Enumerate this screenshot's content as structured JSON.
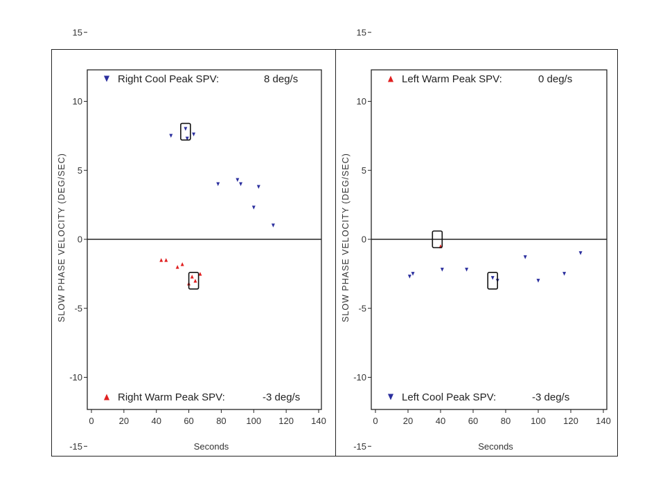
{
  "chart_data": [
    {
      "type": "scatter",
      "panel": "right-ear",
      "xlabel": "Seconds",
      "ylabel": "SLOW PHASE VELOCITY (DEG/SEC)",
      "xlim": [
        0,
        140
      ],
      "ylim": [
        -23,
        25
      ],
      "xticks": [
        "0",
        "20",
        "40",
        "60",
        "80",
        "100",
        "120",
        "140"
      ],
      "yticks": [
        "20",
        "15",
        "10",
        "5",
        "0",
        "-5",
        "-10",
        "-15",
        "-20"
      ],
      "colors": {
        "cool": "#2b2f9e",
        "warm": "#e02020"
      },
      "series": [
        {
          "name": "Right Cool Peak SPV:",
          "peak_value": "8 deg/s",
          "marker": "triangle-down",
          "color": "#2b2f9e",
          "points": [
            [
              49,
              7.5
            ],
            [
              58,
              8
            ],
            [
              59,
              7.3
            ],
            [
              63,
              7.6
            ],
            [
              78,
              4
            ],
            [
              90,
              4.3
            ],
            [
              92,
              4
            ],
            [
              100,
              2.3
            ],
            [
              103,
              3.8
            ],
            [
              112,
              1
            ]
          ],
          "peak_point": [
            58,
            7.8
          ]
        },
        {
          "name": "Right Warm Peak SPV:",
          "peak_value": "-3 deg/s",
          "marker": "triangle-up",
          "color": "#e02020",
          "points": [
            [
              43,
              -1.5
            ],
            [
              46,
              -1.5
            ],
            [
              53,
              -2
            ],
            [
              56,
              -1.8
            ],
            [
              60,
              -3.2
            ],
            [
              62,
              -2.7
            ],
            [
              64,
              -3
            ],
            [
              67,
              -2.5
            ]
          ],
          "peak_point": [
            63,
            -3
          ]
        }
      ]
    },
    {
      "type": "scatter",
      "panel": "left-ear",
      "xlabel": "Seconds",
      "ylabel": "SLOW PHASE VELOCITY (DEG/SEC)",
      "xlim": [
        0,
        140
      ],
      "ylim": [
        -23,
        25
      ],
      "xticks": [
        "0",
        "20",
        "40",
        "60",
        "80",
        "100",
        "120",
        "140"
      ],
      "yticks": [
        "20",
        "15",
        "10",
        "5",
        "0",
        "-5",
        "-10",
        "-15",
        "-20"
      ],
      "colors": {
        "cool": "#2b2f9e",
        "warm": "#e02020"
      },
      "series": [
        {
          "name": "Left Warm Peak SPV:",
          "peak_value": "0 deg/s",
          "marker": "triangle-up",
          "color": "#e02020",
          "points": [
            [
              40,
              -0.5
            ]
          ],
          "peak_point": [
            38,
            0
          ]
        },
        {
          "name": "Left Cool Peak SPV:",
          "peak_value": "-3 deg/s",
          "marker": "triangle-down",
          "color": "#2b2f9e",
          "points": [
            [
              21,
              -2.7
            ],
            [
              23,
              -2.5
            ],
            [
              41,
              -2.2
            ],
            [
              56,
              -2.2
            ],
            [
              72,
              -2.8
            ],
            [
              75,
              -3
            ],
            [
              92,
              -1.3
            ],
            [
              100,
              -3
            ],
            [
              116,
              -2.5
            ],
            [
              126,
              -1
            ]
          ],
          "peak_point": [
            72,
            -3
          ]
        }
      ]
    }
  ]
}
